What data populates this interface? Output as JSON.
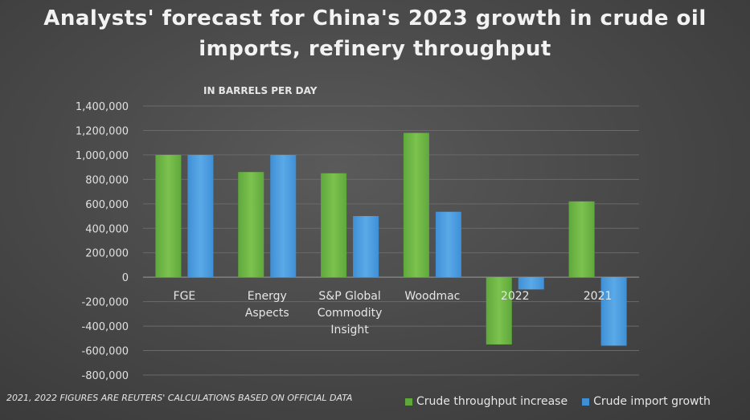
{
  "chart_data": {
    "type": "bar",
    "title": "Analysts' forecast for China's 2023 growth in crude oil imports, refinery throughput",
    "subtitle": "IN BARRELS PER DAY",
    "footnote": "2021, 2022 FIGURES ARE REUTERS' CALCULATIONS BASED ON  OFFICIAL DATA",
    "categories": [
      [
        "FGE"
      ],
      [
        "Energy",
        "Aspects"
      ],
      [
        "S&P Global",
        "Commodity",
        "Insight"
      ],
      [
        "Woodmac"
      ],
      [
        "2022"
      ],
      [
        "2021"
      ]
    ],
    "series": [
      {
        "name": "Crude throughput increase",
        "color": "#5fa83c",
        "values": [
          1000000,
          860000,
          850000,
          1180000,
          -550000,
          620000
        ]
      },
      {
        "name": "Crude import growth",
        "color": "#3f8fd6",
        "values": [
          1000000,
          1000000,
          500000,
          535000,
          -100000,
          -560000
        ]
      }
    ],
    "ylim": [
      -800000,
      1400000
    ],
    "yticks": [
      "1,400,000",
      "1,200,000",
      "1,000,000",
      "800,000",
      "600,000",
      "400,000",
      "200,000",
      "0",
      "-200,000",
      "-400,000",
      "-600,000",
      "-800,000"
    ],
    "ytick_values": [
      1400000,
      1200000,
      1000000,
      800000,
      600000,
      400000,
      200000,
      0,
      -200000,
      -400000,
      -600000,
      -800000
    ],
    "grid": true,
    "legend": "bottom-right"
  }
}
